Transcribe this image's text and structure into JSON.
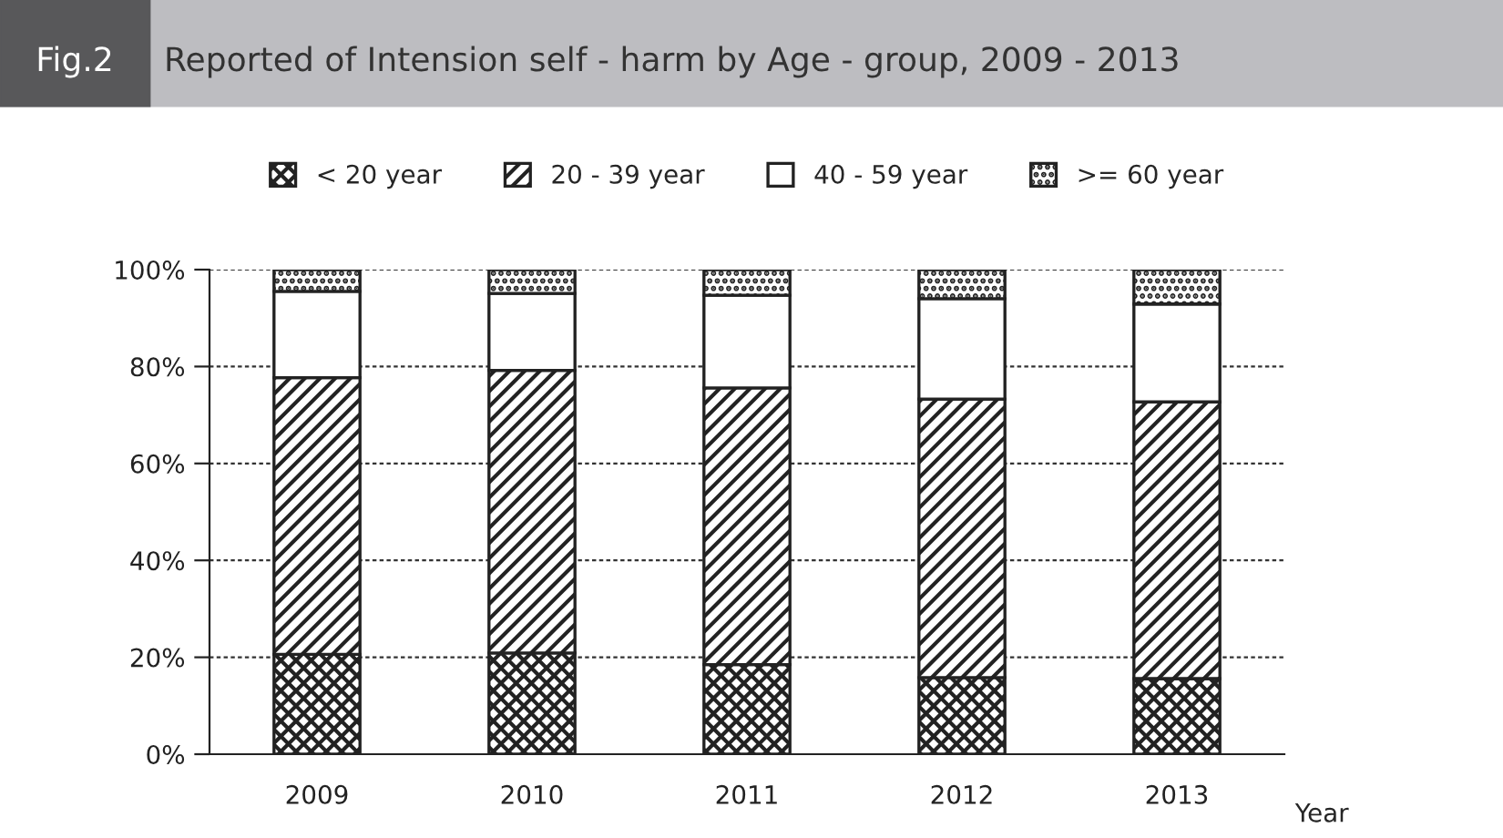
{
  "chart_data": {
    "type": "bar",
    "title": "Fig.2",
    "subtitle": "Reported of Intension self - harm by Age - group, 2009 - 2013",
    "xlabel": "Year",
    "categories": [
      "2009",
      "2010",
      "2011",
      "2012",
      "2013"
    ],
    "stacked": true,
    "series": [
      {
        "name": "< 20 year",
        "color": "#222222",
        "values": [
          20.6,
          20.9,
          18.5,
          15.8,
          15.6
        ]
      },
      {
        "name": "20 - 39 year",
        "color": "#222222",
        "values": [
          57.1,
          58.3,
          57.1,
          57.5,
          57.1
        ]
      },
      {
        "name": "40 - 59 year",
        "color": "#ffffff",
        "values": [
          17.8,
          15.9,
          19.1,
          20.7,
          20.2
        ]
      },
      {
        "name": ">= 60 year",
        "color": "#222222",
        "values": [
          4.5,
          4.9,
          5.3,
          6.0,
          7.1
        ]
      }
    ],
    "ylim": [
      0,
      100
    ],
    "yticks": [
      {
        "value": 0,
        "label": "0%"
      },
      {
        "value": 20,
        "label": "20%"
      },
      {
        "value": 40,
        "label": "40%"
      },
      {
        "value": 60,
        "label": "60%"
      },
      {
        "value": 80,
        "label": "80%"
      },
      {
        "value": 100,
        "label": "100%"
      }
    ],
    "grid": "y",
    "legend": "top"
  }
}
